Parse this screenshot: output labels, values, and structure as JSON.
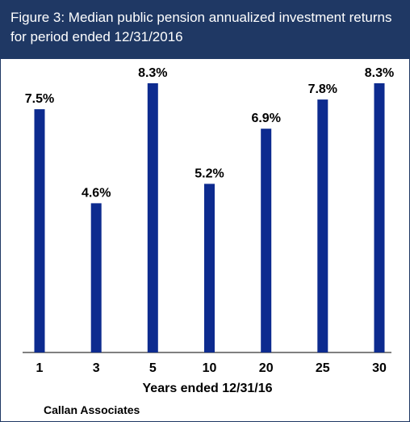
{
  "title_lines": [
    "Figure 3: Median public pension annualized investment returns",
    "for period ended 12/31/2016"
  ],
  "source": "Callan Associates",
  "colors": {
    "header_bg": "#1f3864",
    "bar": "#0d2b8f",
    "text": "#000000"
  },
  "chart_data": {
    "type": "bar",
    "title": "Figure 3: Median public pension annualized investment returns for period ended 12/31/2016",
    "xlabel": "Years ended 12/31/16",
    "ylabel": "",
    "categories": [
      "1",
      "3",
      "5",
      "10",
      "20",
      "25",
      "30"
    ],
    "values": [
      7.5,
      4.6,
      8.3,
      5.2,
      6.9,
      7.8,
      8.3
    ],
    "data_labels": [
      "7.5%",
      "4.6%",
      "8.3%",
      "5.2%",
      "6.9%",
      "7.8%",
      "8.3%"
    ],
    "ylim": [
      0,
      8.3
    ],
    "grid": false,
    "legend": "none"
  }
}
